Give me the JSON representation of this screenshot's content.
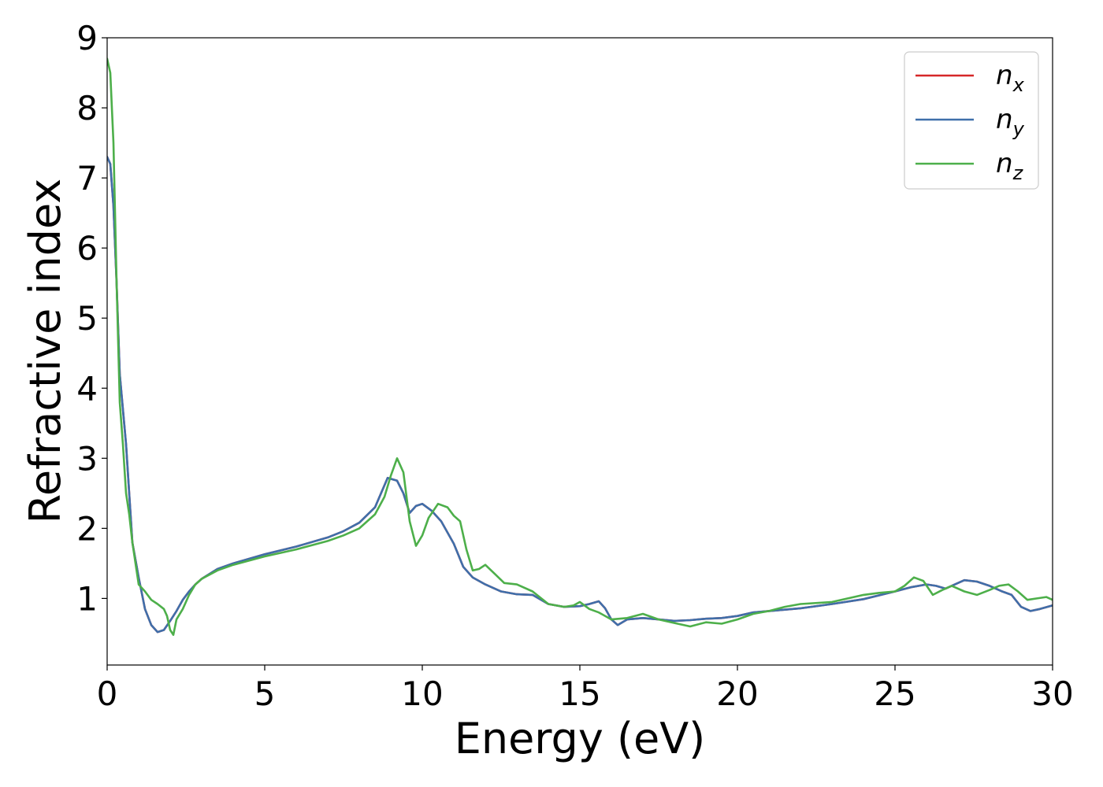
{
  "chart_data": {
    "type": "line",
    "title": "",
    "xlabel": "Energy (eV)",
    "ylabel": "Refractive index",
    "xlim": [
      0,
      30
    ],
    "ylim": [
      0.05,
      9.0
    ],
    "xticks": [
      0,
      5,
      10,
      15,
      20,
      25,
      30
    ],
    "yticks": [
      1,
      2,
      3,
      4,
      5,
      6,
      7,
      8,
      9
    ],
    "grid": false,
    "legend_position": "top-right",
    "series": [
      {
        "name": "n_x",
        "label_base": "n",
        "label_sub": "x",
        "color": "#d62728",
        "x": [
          0,
          0.1,
          0.2,
          0.3,
          0.4,
          0.5,
          0.6,
          0.7,
          0.8,
          1.0,
          1.2,
          1.4,
          1.6,
          1.8,
          2.0,
          2.2,
          2.4,
          2.6,
          2.8,
          3.0,
          3.5,
          4.0,
          5.0,
          6.0,
          7.0,
          7.5,
          8.0,
          8.5,
          8.9,
          9.2,
          9.4,
          9.6,
          9.8,
          10.0,
          10.3,
          10.6,
          11.0,
          11.3,
          11.6,
          12.0,
          12.5,
          13.0,
          13.5,
          14.0,
          14.5,
          15.0,
          15.3,
          15.6,
          15.8,
          16.0,
          16.2,
          16.5,
          17.0,
          17.5,
          18.0,
          18.5,
          19.0,
          19.5,
          20.0,
          20.5,
          21.0,
          22.0,
          23.0,
          24.0,
          25.0,
          25.5,
          26.0,
          26.3,
          26.6,
          26.9,
          27.2,
          27.6,
          28.0,
          28.4,
          28.7,
          29.0,
          29.3,
          29.6,
          30.0
        ],
        "values": [
          7.3,
          7.2,
          6.6,
          5.5,
          4.2,
          3.7,
          3.2,
          2.5,
          1.8,
          1.3,
          0.85,
          0.62,
          0.52,
          0.55,
          0.68,
          0.82,
          0.98,
          1.1,
          1.2,
          1.28,
          1.42,
          1.5,
          1.63,
          1.74,
          1.87,
          1.96,
          2.08,
          2.3,
          2.72,
          2.68,
          2.5,
          2.22,
          2.32,
          2.35,
          2.25,
          2.1,
          1.78,
          1.45,
          1.3,
          1.2,
          1.1,
          1.06,
          1.05,
          0.92,
          0.88,
          0.89,
          0.92,
          0.96,
          0.86,
          0.7,
          0.62,
          0.7,
          0.72,
          0.7,
          0.68,
          0.69,
          0.71,
          0.72,
          0.75,
          0.8,
          0.82,
          0.86,
          0.92,
          0.99,
          1.1,
          1.16,
          1.2,
          1.18,
          1.14,
          1.2,
          1.26,
          1.24,
          1.18,
          1.1,
          1.05,
          0.88,
          0.82,
          0.85,
          0.9
        ]
      },
      {
        "name": "n_y",
        "label_base": "n",
        "label_sub": "y",
        "color": "#3f6faa",
        "x": [
          0,
          0.1,
          0.2,
          0.3,
          0.4,
          0.5,
          0.6,
          0.7,
          0.8,
          1.0,
          1.2,
          1.4,
          1.6,
          1.8,
          2.0,
          2.2,
          2.4,
          2.6,
          2.8,
          3.0,
          3.5,
          4.0,
          5.0,
          6.0,
          7.0,
          7.5,
          8.0,
          8.5,
          8.9,
          9.2,
          9.4,
          9.6,
          9.8,
          10.0,
          10.3,
          10.6,
          11.0,
          11.3,
          11.6,
          12.0,
          12.5,
          13.0,
          13.5,
          14.0,
          14.5,
          15.0,
          15.3,
          15.6,
          15.8,
          16.0,
          16.2,
          16.5,
          17.0,
          17.5,
          18.0,
          18.5,
          19.0,
          19.5,
          20.0,
          20.5,
          21.0,
          22.0,
          23.0,
          24.0,
          25.0,
          25.5,
          26.0,
          26.3,
          26.6,
          26.9,
          27.2,
          27.6,
          28.0,
          28.4,
          28.7,
          29.0,
          29.3,
          29.6,
          30.0
        ],
        "values": [
          7.3,
          7.2,
          6.6,
          5.5,
          4.2,
          3.7,
          3.2,
          2.5,
          1.8,
          1.3,
          0.85,
          0.62,
          0.52,
          0.55,
          0.68,
          0.82,
          0.98,
          1.1,
          1.2,
          1.28,
          1.42,
          1.5,
          1.63,
          1.74,
          1.87,
          1.96,
          2.08,
          2.3,
          2.72,
          2.68,
          2.5,
          2.22,
          2.32,
          2.35,
          2.25,
          2.1,
          1.78,
          1.45,
          1.3,
          1.2,
          1.1,
          1.06,
          1.05,
          0.92,
          0.88,
          0.89,
          0.92,
          0.96,
          0.86,
          0.7,
          0.62,
          0.7,
          0.72,
          0.7,
          0.68,
          0.69,
          0.71,
          0.72,
          0.75,
          0.8,
          0.82,
          0.86,
          0.92,
          0.99,
          1.1,
          1.16,
          1.2,
          1.18,
          1.14,
          1.2,
          1.26,
          1.24,
          1.18,
          1.1,
          1.05,
          0.88,
          0.82,
          0.85,
          0.9
        ]
      },
      {
        "name": "n_z",
        "label_base": "n",
        "label_sub": "z",
        "color": "#4daf4a",
        "x": [
          0,
          0.1,
          0.2,
          0.3,
          0.4,
          0.5,
          0.6,
          0.7,
          0.8,
          1.0,
          1.2,
          1.4,
          1.6,
          1.8,
          1.9,
          2.0,
          2.1,
          2.2,
          2.4,
          2.6,
          2.8,
          3.0,
          3.5,
          4.0,
          5.0,
          6.0,
          7.0,
          7.5,
          8.0,
          8.5,
          8.8,
          9.0,
          9.2,
          9.4,
          9.6,
          9.8,
          10.0,
          10.2,
          10.5,
          10.8,
          11.0,
          11.2,
          11.4,
          11.6,
          11.8,
          12.0,
          12.3,
          12.6,
          13.0,
          13.5,
          14.0,
          14.5,
          14.8,
          15.0,
          15.3,
          15.6,
          16.0,
          16.5,
          17.0,
          17.5,
          18.0,
          18.5,
          19.0,
          19.5,
          20.0,
          20.5,
          21.0,
          21.5,
          22.0,
          23.0,
          24.0,
          24.5,
          25.0,
          25.3,
          25.6,
          25.9,
          26.2,
          26.5,
          26.8,
          27.2,
          27.6,
          28.0,
          28.3,
          28.6,
          28.9,
          29.2,
          29.5,
          29.8,
          30.0
        ],
        "values": [
          8.7,
          8.5,
          7.5,
          5.5,
          3.8,
          3.2,
          2.5,
          2.2,
          1.8,
          1.2,
          1.1,
          0.98,
          0.92,
          0.85,
          0.75,
          0.55,
          0.48,
          0.7,
          0.85,
          1.05,
          1.2,
          1.28,
          1.4,
          1.48,
          1.6,
          1.7,
          1.82,
          1.9,
          2.0,
          2.2,
          2.45,
          2.75,
          3.0,
          2.8,
          2.1,
          1.75,
          1.9,
          2.15,
          2.35,
          2.3,
          2.18,
          2.1,
          1.7,
          1.4,
          1.42,
          1.48,
          1.35,
          1.22,
          1.2,
          1.1,
          0.92,
          0.88,
          0.9,
          0.95,
          0.85,
          0.8,
          0.7,
          0.72,
          0.78,
          0.7,
          0.65,
          0.6,
          0.66,
          0.64,
          0.7,
          0.78,
          0.82,
          0.88,
          0.92,
          0.95,
          1.05,
          1.08,
          1.1,
          1.18,
          1.3,
          1.25,
          1.05,
          1.12,
          1.18,
          1.1,
          1.05,
          1.12,
          1.18,
          1.2,
          1.1,
          0.98,
          1.0,
          1.02,
          0.98
        ]
      }
    ]
  }
}
